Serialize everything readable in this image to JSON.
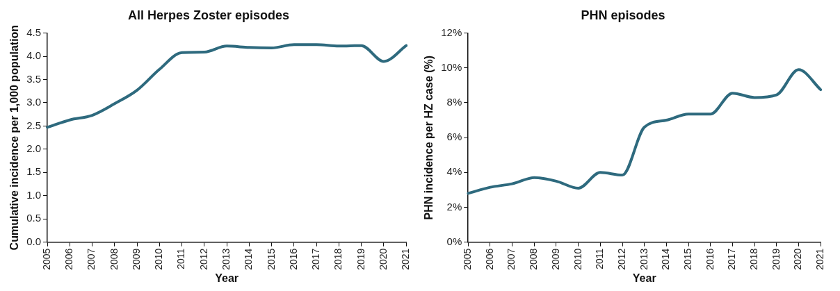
{
  "chart_data": [
    {
      "type": "line",
      "title": "All Herpes Zoster episodes",
      "xlabel": "Year",
      "ylabel": "Cumulative incidence per 1,000 population",
      "categories": [
        "2005",
        "2006",
        "2007",
        "2008",
        "2009",
        "2010",
        "2011",
        "2012",
        "2013",
        "2014",
        "2015",
        "2016",
        "2017",
        "2018",
        "2019",
        "2020",
        "2021"
      ],
      "series": [
        {
          "color": "#2e6a7e",
          "values": [
            2.47,
            2.63,
            2.73,
            2.98,
            3.27,
            3.72,
            4.08,
            4.09,
            4.22,
            4.19,
            4.18,
            4.25,
            4.25,
            4.22,
            4.23,
            3.89,
            4.23
          ]
        }
      ],
      "ylim": [
        0,
        4.5
      ],
      "yticks": [
        {
          "value": 0,
          "label": "0.0"
        },
        0.5,
        {
          "value": 1,
          "label": "1.0"
        },
        1.5,
        {
          "value": 2,
          "label": "2.0"
        },
        2.5,
        {
          "value": 3,
          "label": "3.0"
        },
        3.5,
        {
          "value": 4,
          "label": "4.0"
        },
        4.5
      ],
      "grid": false,
      "legend": false,
      "marker": "none",
      "line_style": "solid"
    },
    {
      "type": "line",
      "title": "PHN episodes",
      "xlabel": "Year",
      "ylabel": "PHN incidence per HZ case (%)",
      "categories": [
        "2005",
        "2006",
        "2007",
        "2008",
        "2009",
        "2010",
        "2011",
        "2012",
        "2013",
        "2014",
        "2015",
        "2016",
        "2017",
        "2018",
        "2019",
        "2020",
        "2021"
      ],
      "series": [
        {
          "color": "#2e6a7e",
          "values": [
            2.8,
            3.15,
            3.35,
            3.7,
            3.5,
            3.1,
            4.0,
            3.85,
            6.6,
            7.0,
            7.35,
            7.35,
            8.55,
            8.3,
            8.45,
            9.9,
            8.75
          ]
        }
      ],
      "ylim": [
        0,
        12
      ],
      "yticks": [
        {
          "value": 0,
          "label": "0%"
        },
        {
          "value": 2,
          "label": "2%"
        },
        {
          "value": 4,
          "label": "4%"
        },
        {
          "value": 6,
          "label": "6%"
        },
        {
          "value": 8,
          "label": "8%"
        },
        {
          "value": 10,
          "label": "10%"
        },
        {
          "value": 12,
          "label": "12%"
        }
      ],
      "grid": false,
      "legend": false,
      "marker": "none",
      "line_style": "solid"
    }
  ]
}
